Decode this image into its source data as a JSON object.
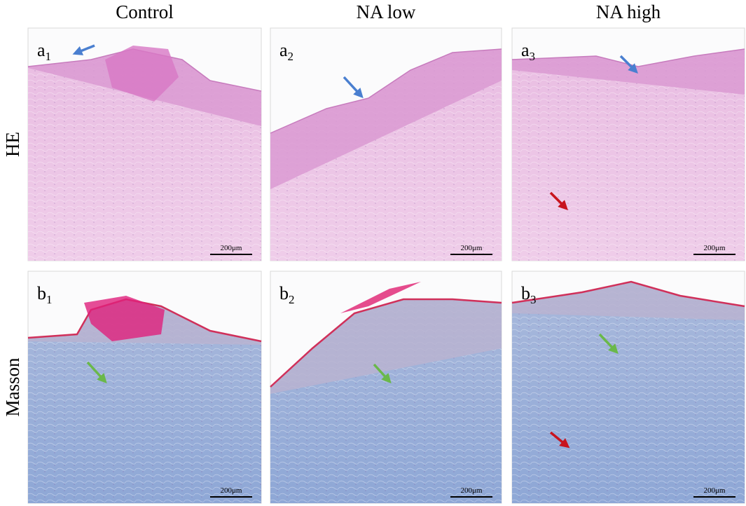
{
  "columns": [
    "Control",
    "NA low",
    "NA high"
  ],
  "rows": [
    {
      "label": "HE",
      "panels": [
        {
          "letter": "a",
          "index": "1",
          "scale": "200μm"
        },
        {
          "letter": "a",
          "index": "2",
          "scale": "200μm"
        },
        {
          "letter": "a",
          "index": "3",
          "scale": "200μm"
        }
      ]
    },
    {
      "label": "Masson",
      "panels": [
        {
          "letter": "b",
          "index": "1",
          "scale": "200μm"
        },
        {
          "letter": "b",
          "index": "2",
          "scale": "200μm"
        },
        {
          "letter": "b",
          "index": "3",
          "scale": "200μm"
        }
      ]
    }
  ]
}
